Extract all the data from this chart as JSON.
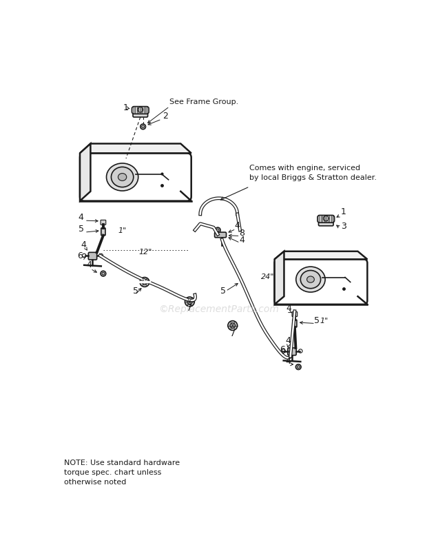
{
  "bg_color": "#ffffff",
  "line_color": "#1a1a1a",
  "note_text": "NOTE: Use standard hardware\ntorque spec. chart unless\notherwise noted",
  "annotation1": "See Frame Group.",
  "annotation2": "Comes with engine, serviced\nby local Briggs & Stratton dealer.",
  "watermark": "©ReplacementParts.com"
}
